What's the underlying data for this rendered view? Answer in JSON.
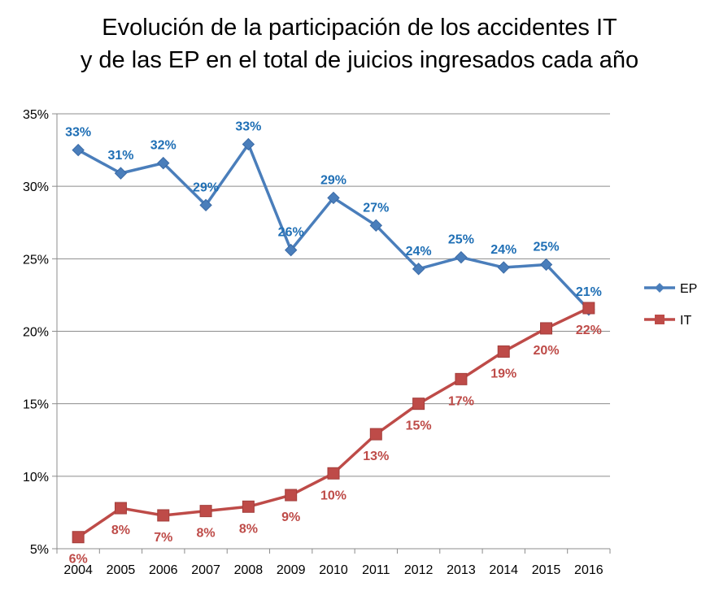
{
  "chart_data": {
    "type": "line",
    "title_lines": [
      "Evolución de la participación de los accidentes IT",
      "y de las EP en el total de juicios ingresados cada año"
    ],
    "x": [
      "2004",
      "2005",
      "2006",
      "2007",
      "2008",
      "2009",
      "2010",
      "2011",
      "2012",
      "2013",
      "2014",
      "2015",
      "2016"
    ],
    "y_ticks": [
      {
        "value": 5,
        "label": "5%"
      },
      {
        "value": 10,
        "label": "10%"
      },
      {
        "value": 15,
        "label": "15%"
      },
      {
        "value": 20,
        "label": "20%"
      },
      {
        "value": 25,
        "label": "25%"
      },
      {
        "value": 30,
        "label": "30%"
      },
      {
        "value": 35,
        "label": "35%"
      }
    ],
    "ylim": [
      5,
      35
    ],
    "grid": "horizontal",
    "legend_position": "right",
    "series": [
      {
        "name": "EP",
        "color": "#4a7ebb",
        "label_color": "#1f6fb5",
        "marker": "diamond",
        "values": [
          32.5,
          30.9,
          31.6,
          28.7,
          32.9,
          25.6,
          29.2,
          27.3,
          24.3,
          25.1,
          24.4,
          24.6,
          21.5
        ],
        "labels": [
          "33%",
          "31%",
          "32%",
          "29%",
          "33%",
          "26%",
          "29%",
          "27%",
          "24%",
          "25%",
          "24%",
          "25%",
          "21%"
        ],
        "label_side": "above"
      },
      {
        "name": "IT",
        "color": "#be4b48",
        "label_color": "#be4b48",
        "marker": "square",
        "values": [
          5.8,
          7.8,
          7.3,
          7.6,
          7.9,
          8.7,
          10.2,
          12.9,
          15.0,
          16.7,
          18.6,
          20.2,
          21.6
        ],
        "labels": [
          "6%",
          "8%",
          "7%",
          "8%",
          "8%",
          "9%",
          "10%",
          "13%",
          "15%",
          "17%",
          "19%",
          "20%",
          "22%"
        ],
        "label_side": "below"
      }
    ]
  }
}
